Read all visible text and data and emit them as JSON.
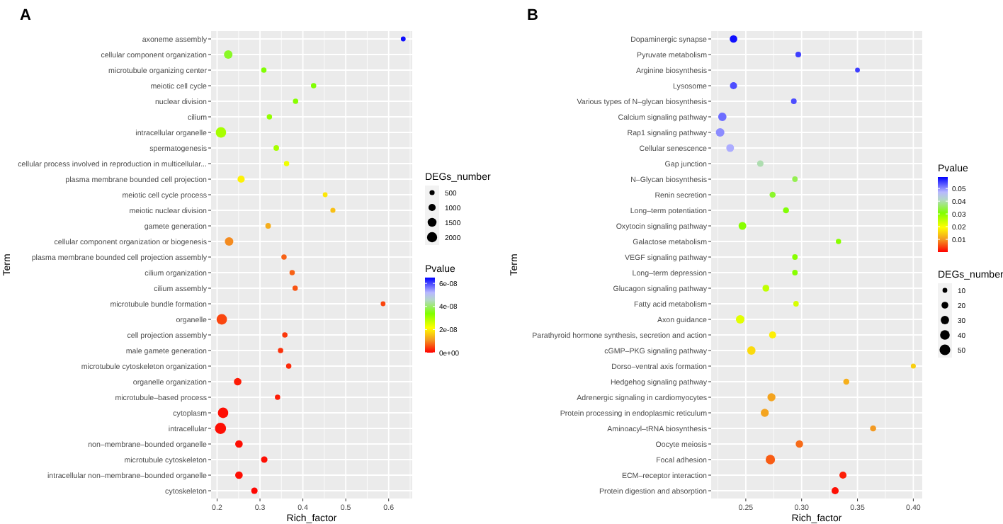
{
  "chart_data": [
    {
      "type": "bubble",
      "orientation": "horizontal",
      "title": "A",
      "xlabel": "Rich_factor",
      "ylabel": "Term",
      "legend_title": "DEGs_number",
      "clabel": "Pvalue",
      "grid": true,
      "categories": [
        "axoneme assembly",
        "cellular component organization",
        "microtubule organizing center",
        "meiotic cell cycle",
        "nuclear division",
        "cilium",
        "intracellular organelle",
        "spermatogenesis",
        "cellular process involved in reproduction in multicellular...",
        "plasma membrane bounded cell projection",
        "meiotic cell cycle process",
        "meiotic nuclear division",
        "gamete generation",
        "cellular component organization or biogenesis",
        "plasma membrane bounded cell projection assembly",
        "cilium organization",
        "cilium assembly",
        "microtubule bundle formation",
        "organelle",
        "cell projection assembly",
        "male gamete generation",
        "microtubule cytoskeleton organization",
        "organelle organization",
        "microtubule–based process",
        "cytoplasm",
        "intracellular",
        "non–membrane–bounded organelle",
        "microtubule cytoskeleton",
        "intracellular non–membrane–bounded organelle",
        "cytoskeleton"
      ],
      "values": [
        0.634,
        0.226,
        0.309,
        0.425,
        0.383,
        0.322,
        0.209,
        0.338,
        0.362,
        0.256,
        0.452,
        0.47,
        0.319,
        0.228,
        0.356,
        0.375,
        0.382,
        0.587,
        0.211,
        0.358,
        0.348,
        0.367,
        0.248,
        0.341,
        0.214,
        0.208,
        0.251,
        0.31,
        0.251,
        0.287
      ],
      "sizes": [
        450,
        1400,
        550,
        550,
        550,
        550,
        2100,
        600,
        550,
        1000,
        450,
        500,
        600,
        1400,
        550,
        550,
        550,
        450,
        2100,
        550,
        550,
        550,
        1100,
        550,
        2100,
        2400,
        1100,
        800,
        1100,
        800
      ],
      "cvalues": [
        6.4e-08,
        3.6e-08,
        3.4e-08,
        3.4e-08,
        3.3e-08,
        3.2e-08,
        3e-08,
        3e-08,
        2.3e-08,
        2e-08,
        1.9e-08,
        1.5e-08,
        1.3e-08,
        1e-08,
        7e-09,
        7e-09,
        6e-09,
        5e-09,
        5e-09,
        4e-09,
        3.5e-09,
        3e-09,
        2e-09,
        2e-09,
        1e-09,
        1e-09,
        1e-09,
        1e-09,
        1e-09,
        5e-10
      ],
      "xlim": [
        0.186,
        0.655
      ],
      "xticks": [
        0.2,
        0.3,
        0.4,
        0.5,
        0.6
      ],
      "size_legend": [
        500,
        1000,
        1500,
        2000
      ],
      "clim": [
        0,
        6.5e-08
      ],
      "cticks": [
        {
          "value": 0,
          "label": "0e+00"
        },
        {
          "value": 2e-08,
          "label": "2e-08"
        },
        {
          "value": 4e-08,
          "label": "4e-08"
        },
        {
          "value": 6e-08,
          "label": "6e-08"
        }
      ]
    },
    {
      "type": "bubble",
      "orientation": "horizontal",
      "title": "B",
      "xlabel": "Rich_factor",
      "ylabel": "Term",
      "legend_title": "DEGs_number",
      "clabel": "Pvalue",
      "grid": true,
      "categories": [
        "Dopaminergic synapse",
        "Pyruvate metabolism",
        "Arginine biosynthesis",
        "Lysosome",
        "Various types of N–glycan biosynthesis",
        "Calcium signaling pathway",
        "Rap1 signaling pathway",
        "Cellular senescence",
        "Gap junction",
        "N–Glycan biosynthesis",
        "Renin secretion",
        "Long–term potentiation",
        "Oxytocin signaling pathway",
        "Galactose metabolism",
        "VEGF signaling pathway",
        "Long–term depression",
        "Glucagon signaling pathway",
        "Fatty acid metabolism",
        "Axon guidance",
        "Parathyroid hormone synthesis, secretion and action",
        "cGMP–PKG signaling pathway",
        "Dorso–ventral axis formation",
        "Hedgehog signaling pathway",
        "Adrenergic signaling in cardiomyocytes",
        "Protein processing in endoplasmic reticulum",
        "Aminoacyl–tRNA biosynthesis",
        "Oocyte meiosis",
        "Focal adhesion",
        "ECM–receptor interaction",
        "Protein digestion and absorption"
      ],
      "values": [
        0.239,
        0.297,
        0.35,
        0.239,
        0.293,
        0.229,
        0.227,
        0.236,
        0.263,
        0.294,
        0.274,
        0.286,
        0.247,
        0.333,
        0.294,
        0.294,
        0.268,
        0.295,
        0.245,
        0.274,
        0.255,
        0.4,
        0.34,
        0.273,
        0.267,
        0.364,
        0.298,
        0.272,
        0.337,
        0.33
      ],
      "sizes": [
        25,
        14,
        10,
        22,
        14,
        30,
        32,
        26,
        18,
        13,
        16,
        16,
        26,
        12,
        13,
        13,
        20,
        13,
        32,
        22,
        30,
        11,
        16,
        28,
        28,
        16,
        24,
        38,
        22,
        22
      ],
      "cvalues": [
        0.058,
        0.055,
        0.055,
        0.054,
        0.054,
        0.052,
        0.05,
        0.048,
        0.04,
        0.035,
        0.033,
        0.031,
        0.03,
        0.03,
        0.03,
        0.03,
        0.025,
        0.023,
        0.022,
        0.018,
        0.016,
        0.015,
        0.012,
        0.011,
        0.011,
        0.01,
        0.007,
        0.006,
        0.002,
        0.001
      ],
      "xlim": [
        0.219,
        0.408
      ],
      "xticks": [
        0.25,
        {
          "value": 0.3,
          "label": "0.30"
        },
        0.35,
        {
          "value": 0.4,
          "label": "0.40"
        }
      ],
      "size_legend": [
        10,
        20,
        30,
        40,
        50
      ],
      "clim": [
        0,
        0.059
      ],
      "cticks": [
        0.01,
        0.02,
        0.03,
        0.04,
        0.05
      ]
    }
  ]
}
